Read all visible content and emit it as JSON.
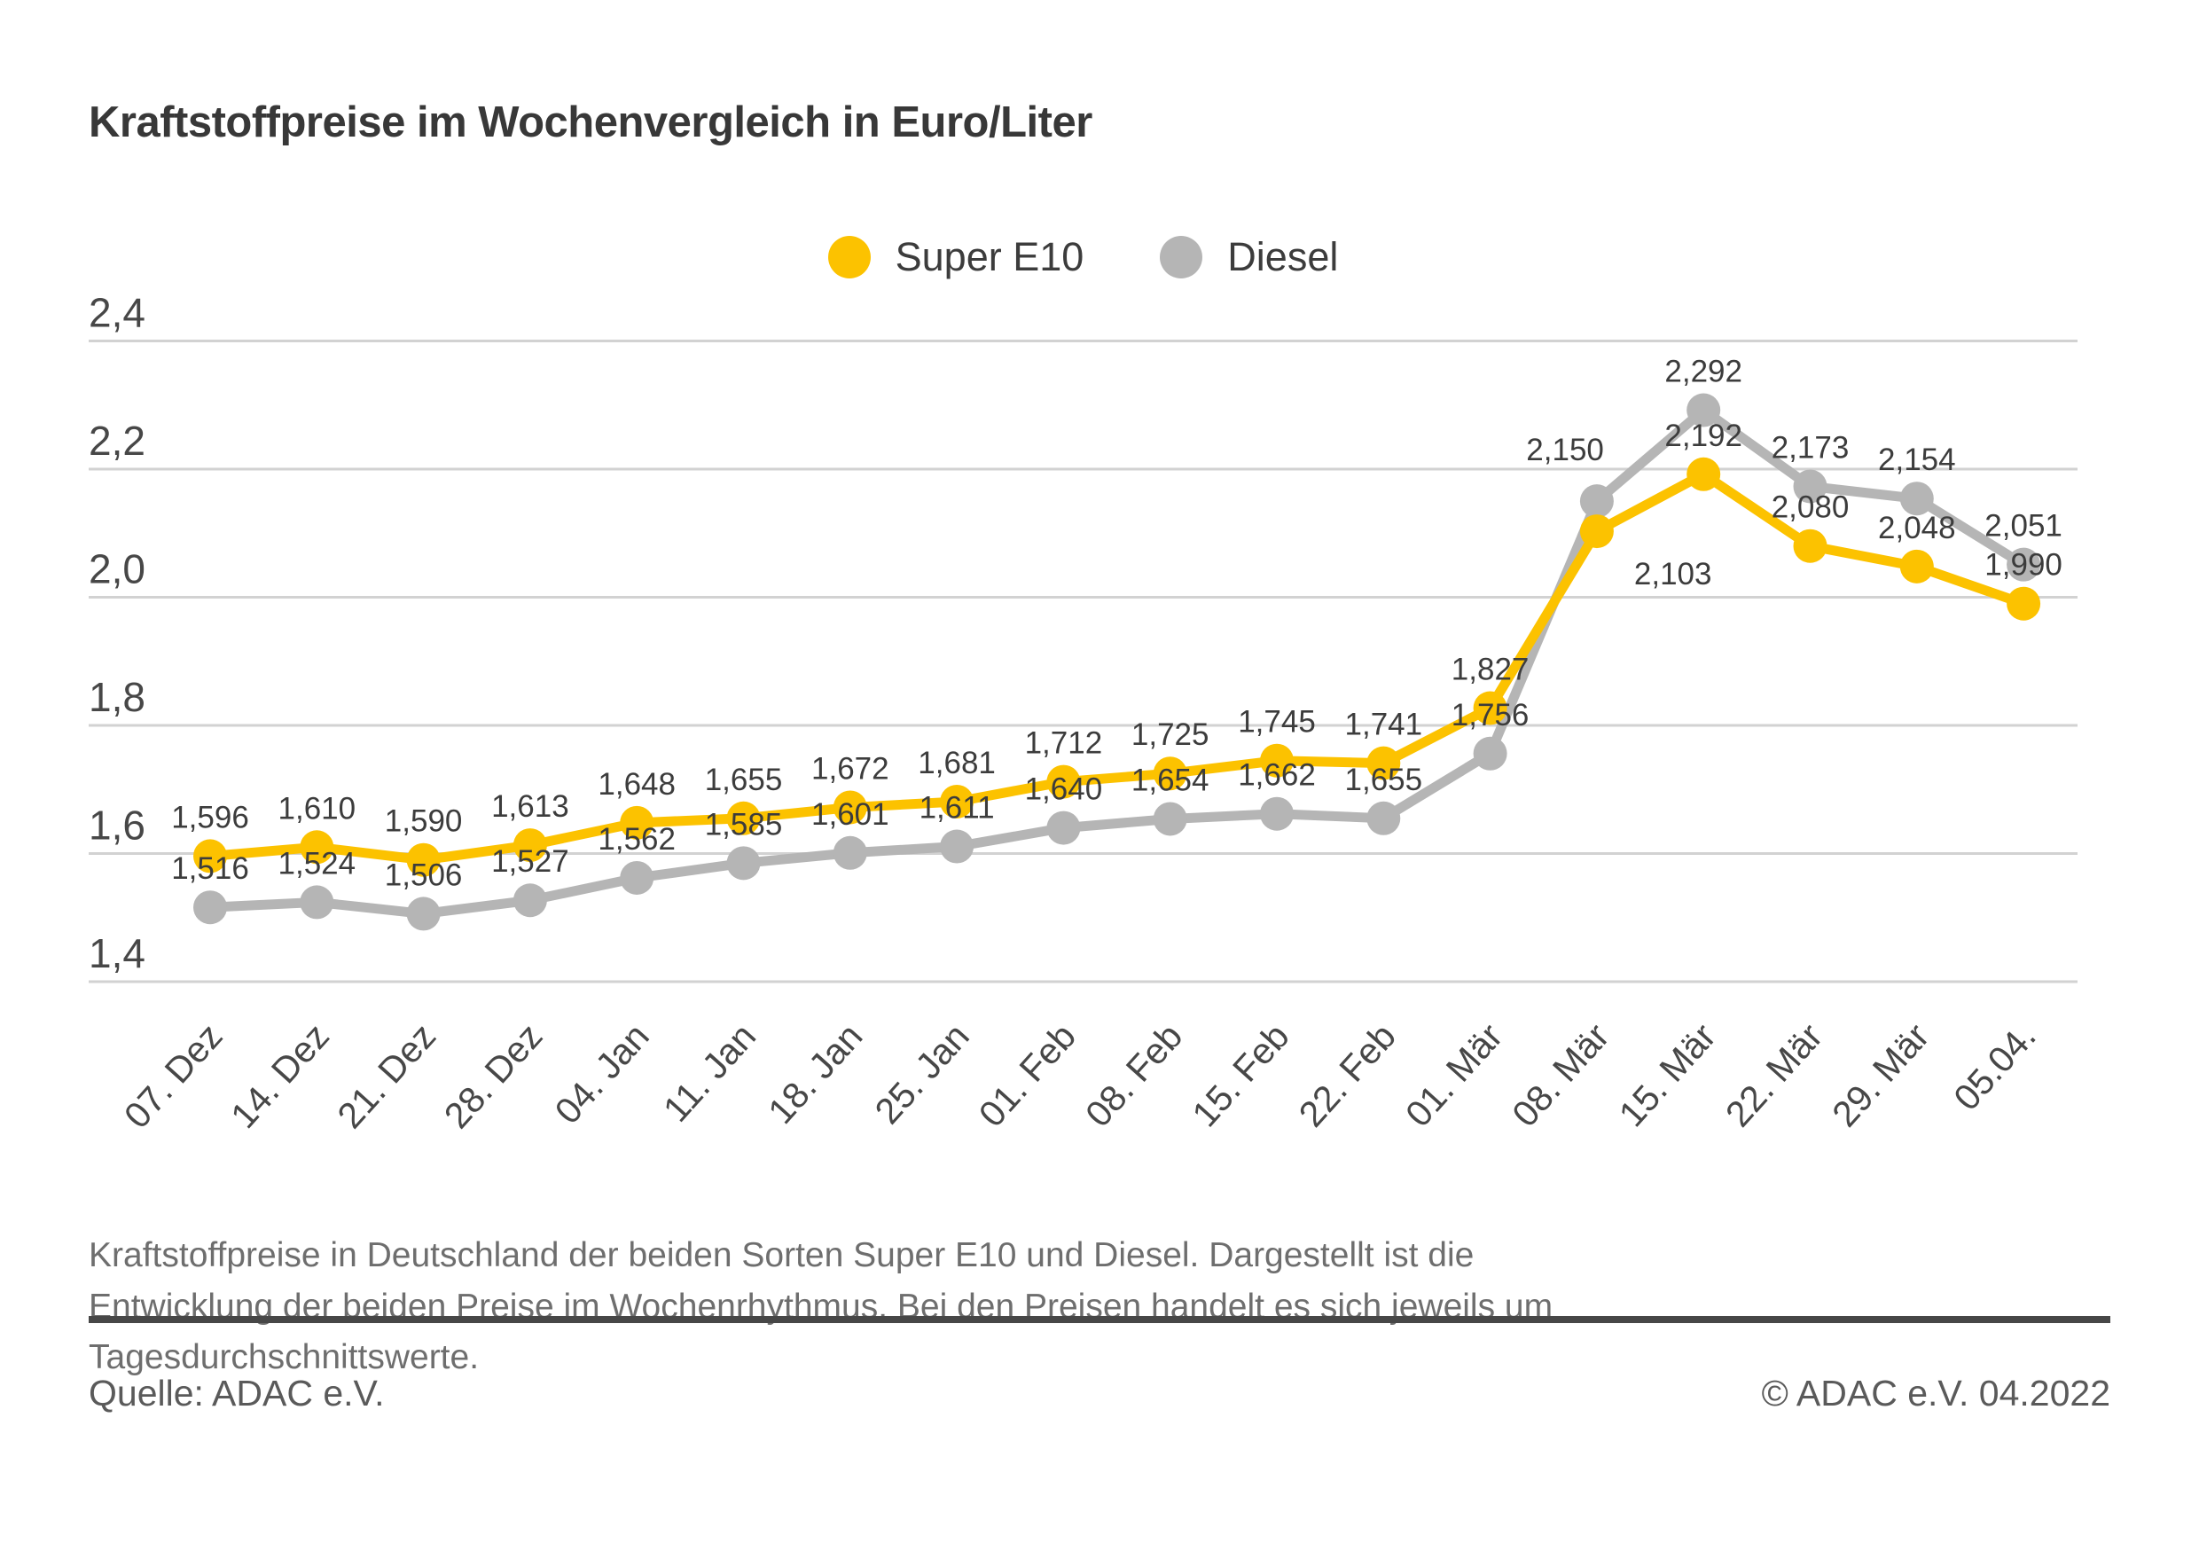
{
  "title": "Kraftstoffpreise im Wochenvergleich in Euro/Liter",
  "colors": {
    "super_e10": "#fcc200",
    "diesel": "#b5b5b5",
    "gridline": "#d2d2d2",
    "axis_text": "#474747",
    "data_label_text": "#3c3c3c",
    "divider": "#474747"
  },
  "chart_data": {
    "type": "line",
    "title": "Kraftstoffpreise im Wochenvergleich in Euro/Liter",
    "unit": "Euro/Liter",
    "categories": [
      "07. Dez",
      "14. Dez",
      "21. Dez",
      "28. Dez",
      "04. Jan",
      "11. Jan",
      "18. Jan",
      "25. Jan",
      "01. Feb",
      "08. Feb",
      "15. Feb",
      "22. Feb",
      "01. Mär",
      "08. Mär",
      "15. Mär",
      "22. Mär",
      "29. Mär",
      "05.04."
    ],
    "series": [
      {
        "name": "Super E10",
        "color": "#fcc200",
        "values": [
          1.596,
          1.61,
          1.59,
          1.613,
          1.648,
          1.655,
          1.672,
          1.681,
          1.712,
          1.725,
          1.745,
          1.741,
          1.827,
          2.103,
          2.192,
          2.08,
          2.048,
          1.99
        ]
      },
      {
        "name": "Diesel",
        "color": "#b5b5b5",
        "values": [
          1.516,
          1.524,
          1.506,
          1.527,
          1.562,
          1.585,
          1.601,
          1.611,
          1.64,
          1.654,
          1.662,
          1.655,
          1.756,
          2.15,
          2.292,
          2.173,
          2.154,
          2.051
        ]
      }
    ],
    "yticks": [
      1.4,
      1.6,
      1.8,
      2.0,
      2.2,
      2.4
    ],
    "ylim": [
      1.4,
      2.4
    ],
    "grid": true,
    "value_labels": true,
    "legend_position": "top-center",
    "xlabel": "",
    "ylabel": ""
  },
  "footer": {
    "description": "Kraftstoffpreise in Deutschland der beiden Sorten Super E10 und Diesel. Dargestellt ist die Entwicklung der beiden Preise im Wochenrhythmus. Bei den Preisen handelt es sich jeweils um Tagesdurchschnittswerte.",
    "source": "Quelle: ADAC e.V.",
    "copyright": "© ADAC e.V. 04.2022"
  }
}
